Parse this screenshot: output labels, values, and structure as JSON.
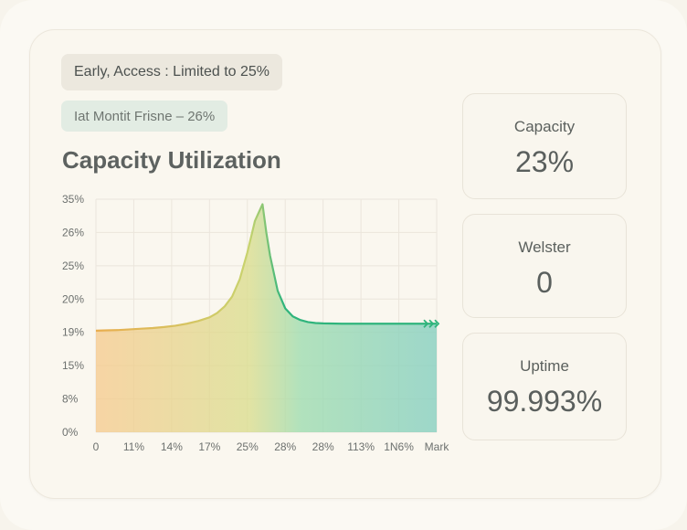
{
  "notice": {
    "access_label": "Early, Access : Limited to 25%",
    "month_label": "Iat Montit Frisne – 26%"
  },
  "title": "Capacity Utilization",
  "stats": [
    {
      "label": "Capacity",
      "value": "23%"
    },
    {
      "label": "Welster",
      "value": "0"
    },
    {
      "label": "Uptime",
      "value": "99.993%"
    }
  ],
  "colors": {
    "line_left": "#e9ad4e",
    "line_mid": "#c8d36e",
    "line_right": "#2fb47c",
    "grid": "#ebe6dc"
  },
  "chart_data": {
    "type": "area",
    "title": "Capacity Utilization",
    "xlabel": "",
    "ylabel": "",
    "x_ticks": [
      "0",
      "11%",
      "14%",
      "17%",
      "25%",
      "28%",
      "28%",
      "113%",
      "1N6%",
      "Mark"
    ],
    "y_ticks": [
      "0%",
      "8%",
      "15%",
      "19%",
      "20%",
      "25%",
      "26%",
      "35%"
    ],
    "ylim": [
      0,
      7
    ],
    "grid": true,
    "series": [
      {
        "x": [
          0,
          0.3,
          0.6,
          0.9,
          1.2,
          1.5,
          1.8,
          2.1,
          2.4,
          2.7,
          3.0,
          3.2,
          3.4,
          3.6,
          3.8,
          4.0,
          4.2,
          4.4,
          4.5,
          4.6,
          4.8,
          5.0,
          5.2,
          5.4,
          5.6,
          5.8,
          6.0,
          6.5,
          7.0,
          7.5,
          8.0,
          8.5,
          9.0
        ],
        "y": [
          3.05,
          3.06,
          3.07,
          3.09,
          3.11,
          3.13,
          3.16,
          3.2,
          3.26,
          3.34,
          3.45,
          3.58,
          3.78,
          4.08,
          4.6,
          5.4,
          6.35,
          6.85,
          6.0,
          5.3,
          4.25,
          3.72,
          3.48,
          3.37,
          3.31,
          3.28,
          3.27,
          3.26,
          3.26,
          3.26,
          3.26,
          3.26,
          3.26
        ]
      }
    ]
  }
}
